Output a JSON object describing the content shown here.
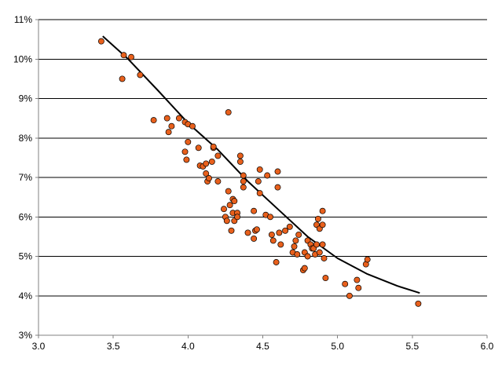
{
  "chart_data": {
    "type": "scatter",
    "title": "",
    "xlabel": "",
    "ylabel": "",
    "xlim": [
      3.0,
      6.0
    ],
    "ylim": [
      3,
      11
    ],
    "x_ticks": [
      "3.0",
      "3.5",
      "4.0",
      "4.5",
      "5.0",
      "5.5",
      "6.0"
    ],
    "y_ticks": [
      "3%",
      "4%",
      "5%",
      "6%",
      "7%",
      "8%",
      "9%",
      "10%",
      "11%"
    ],
    "grid": "horizontal",
    "legend": "none",
    "series": [
      {
        "marker_color": "#E8601C",
        "marker_edge": "#000000",
        "points": [
          [
            3.42,
            10.45
          ],
          [
            3.57,
            10.1
          ],
          [
            3.62,
            10.05
          ],
          [
            3.56,
            9.5
          ],
          [
            3.68,
            9.6
          ],
          [
            3.77,
            8.45
          ],
          [
            3.86,
            8.5
          ],
          [
            3.87,
            8.15
          ],
          [
            3.89,
            8.3
          ],
          [
            3.94,
            8.5
          ],
          [
            3.98,
            8.4
          ],
          [
            4.0,
            8.35
          ],
          [
            4.03,
            8.3
          ],
          [
            3.98,
            7.65
          ],
          [
            3.99,
            7.45
          ],
          [
            4.0,
            7.9
          ],
          [
            4.07,
            7.75
          ],
          [
            4.08,
            7.3
          ],
          [
            4.1,
            7.28
          ],
          [
            4.12,
            7.35
          ],
          [
            4.12,
            7.1
          ],
          [
            4.13,
            6.9
          ],
          [
            4.14,
            6.98
          ],
          [
            4.16,
            7.4
          ],
          [
            4.17,
            7.75
          ],
          [
            4.17,
            7.78
          ],
          [
            4.2,
            6.9
          ],
          [
            4.2,
            7.55
          ],
          [
            4.27,
            8.65
          ],
          [
            4.24,
            6.2
          ],
          [
            4.25,
            6.0
          ],
          [
            4.26,
            5.9
          ],
          [
            4.27,
            6.65
          ],
          [
            4.28,
            6.3
          ],
          [
            4.29,
            5.65
          ],
          [
            4.3,
            6.45
          ],
          [
            4.3,
            6.1
          ],
          [
            4.31,
            6.4
          ],
          [
            4.31,
            5.9
          ],
          [
            4.33,
            6.1
          ],
          [
            4.33,
            6.0
          ],
          [
            4.35,
            7.4
          ],
          [
            4.35,
            7.55
          ],
          [
            4.37,
            7.05
          ],
          [
            4.37,
            6.9
          ],
          [
            4.37,
            6.75
          ],
          [
            4.4,
            5.6
          ],
          [
            4.44,
            5.45
          ],
          [
            4.44,
            6.15
          ],
          [
            4.45,
            5.65
          ],
          [
            4.46,
            5.68
          ],
          [
            4.47,
            6.9
          ],
          [
            4.48,
            7.2
          ],
          [
            4.48,
            6.6
          ],
          [
            4.52,
            6.05
          ],
          [
            4.53,
            7.05
          ],
          [
            4.55,
            6.0
          ],
          [
            4.56,
            5.55
          ],
          [
            4.57,
            5.4
          ],
          [
            4.59,
            4.85
          ],
          [
            4.6,
            7.15
          ],
          [
            4.6,
            6.75
          ],
          [
            4.61,
            5.6
          ],
          [
            4.62,
            5.3
          ],
          [
            4.65,
            5.65
          ],
          [
            4.68,
            5.75
          ],
          [
            4.7,
            5.1
          ],
          [
            4.71,
            5.25
          ],
          [
            4.72,
            5.4
          ],
          [
            4.73,
            5.05
          ],
          [
            4.74,
            5.55
          ],
          [
            4.77,
            4.65
          ],
          [
            4.78,
            4.7
          ],
          [
            4.78,
            5.1
          ],
          [
            4.8,
            5.0
          ],
          [
            4.8,
            5.4
          ],
          [
            4.82,
            5.3
          ],
          [
            4.83,
            5.2
          ],
          [
            4.84,
            5.2
          ],
          [
            4.85,
            5.05
          ],
          [
            4.86,
            5.3
          ],
          [
            4.86,
            5.8
          ],
          [
            4.87,
            5.95
          ],
          [
            4.88,
            5.7
          ],
          [
            4.88,
            5.1
          ],
          [
            4.9,
            5.3
          ],
          [
            4.9,
            5.8
          ],
          [
            4.9,
            6.15
          ],
          [
            4.91,
            4.95
          ],
          [
            4.92,
            4.45
          ],
          [
            5.05,
            4.3
          ],
          [
            5.08,
            4.0
          ],
          [
            5.13,
            4.4
          ],
          [
            5.14,
            4.2
          ],
          [
            5.19,
            4.8
          ],
          [
            5.2,
            4.92
          ],
          [
            5.54,
            3.8
          ]
        ]
      },
      {
        "kind": "trendline",
        "line_color": "#000000",
        "points": [
          [
            3.43,
            10.58
          ],
          [
            3.6,
            10.0
          ],
          [
            3.8,
            9.2
          ],
          [
            4.0,
            8.38
          ],
          [
            4.2,
            7.7
          ],
          [
            4.4,
            6.9
          ],
          [
            4.6,
            6.2
          ],
          [
            4.8,
            5.5
          ],
          [
            5.0,
            4.95
          ],
          [
            5.2,
            4.55
          ],
          [
            5.4,
            4.25
          ],
          [
            5.55,
            4.07
          ]
        ]
      }
    ]
  }
}
